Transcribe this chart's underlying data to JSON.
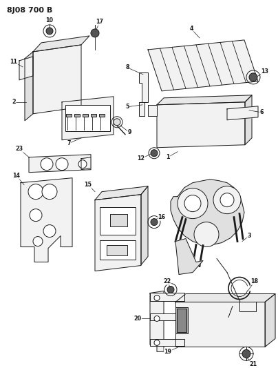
{
  "title": "8J08 700 B",
  "bg_color": "#ffffff",
  "line_color": "#1a1a1a",
  "label_color": "#1a1a1a",
  "fill_light": "#f2f2f2",
  "fill_mid": "#e0e0e0",
  "fill_dark": "#c8c8c8"
}
